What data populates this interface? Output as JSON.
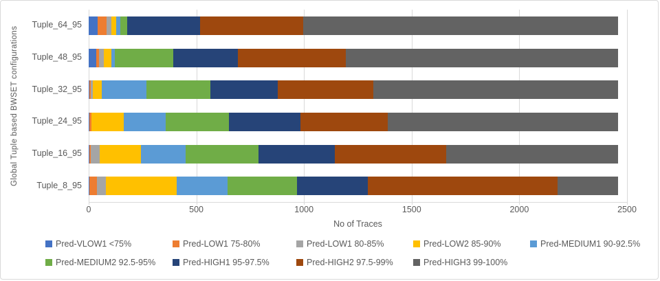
{
  "chart_data": {
    "type": "bar",
    "orientation": "horizontal",
    "stacked": true,
    "xlabel": "No of Traces",
    "ylabel": "Global Tuple based BWSET  configurations",
    "categories": [
      "Tuple_64_95",
      "Tuple_48_95",
      "Tuple_32_95",
      "Tuple_24_95",
      "Tuple_16_95",
      "Tuple_8_95"
    ],
    "x_ticks": [
      "0",
      "500",
      "1000",
      "1500",
      "2000",
      "2500"
    ],
    "x_tick_values": [
      0,
      500,
      1000,
      1500,
      2000,
      2500
    ],
    "xlim": [
      0,
      2500
    ],
    "grid": true,
    "legend_position": "bottom",
    "series": [
      {
        "name": "Pred-VLOW1 <75%",
        "color": "#4472C4",
        "values": [
          43,
          36,
          3,
          3,
          2,
          2
        ]
      },
      {
        "name": "Pred-LOW1 75-80%",
        "color": "#ED7D31",
        "values": [
          40,
          11,
          5,
          9,
          6,
          36
        ]
      },
      {
        "name": "Pred-LOW1 80-85%",
        "color": "#A5A5A5",
        "values": [
          21,
          23,
          11,
          0,
          43,
          42
        ]
      },
      {
        "name": "Pred-LOW2 85-90%",
        "color": "#FFC000",
        "values": [
          23,
          34,
          41,
          151,
          191,
          330
        ]
      },
      {
        "name": "Pred-MEDIUM1 90-92.5%",
        "color": "#5B9BD5",
        "values": [
          21,
          19,
          209,
          194,
          208,
          234
        ]
      },
      {
        "name": "Pred-MEDIUM2 92.5-95%",
        "color": "#70AD47",
        "values": [
          32,
          269,
          296,
          293,
          338,
          323
        ]
      },
      {
        "name": "Pred-HIGH1 95-97.5%",
        "color": "#264478",
        "values": [
          338,
          300,
          312,
          334,
          354,
          328
        ]
      },
      {
        "name": "Pred-HIGH2 97.5-99%",
        "color": "#9E480E",
        "values": [
          479,
          501,
          444,
          404,
          517,
          884
        ]
      },
      {
        "name": "Pred-HIGH3 99-100%",
        "color": "#636363",
        "values": [
          1461,
          1266,
          1138,
          1071,
          800,
          280
        ]
      }
    ]
  },
  "layout_colors": {
    "text": "#595959",
    "gridline": "#D9D9D9",
    "frame_border": "#D9D9D9",
    "background": "#FFFFFF"
  }
}
